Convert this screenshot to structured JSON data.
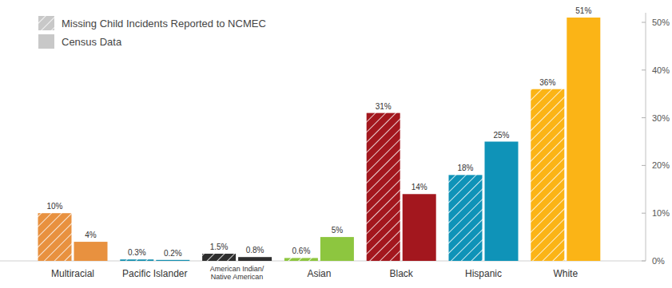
{
  "chart_data": {
    "type": "bar",
    "categories": [
      "Multiracial",
      "Pacific Islander",
      "American Indian/ Native American",
      "Asian",
      "Black",
      "Hispanic",
      "White"
    ],
    "series": [
      {
        "name": "Missing Child Incidents Reported to NCMEC",
        "color": "#c8c8c8",
        "line_style": "hatched",
        "colors": [
          "#e8913f",
          "#1590b0",
          "#2e2e2e",
          "#8dc63f",
          "#a3171e",
          "#0f93b8",
          "#fbb416"
        ],
        "values": [
          10,
          0.3,
          1.5,
          0.6,
          31,
          18,
          36
        ],
        "value_labels": [
          "10%",
          "0.3%",
          "1.5%",
          "0.6%",
          "31%",
          "18%",
          "36%"
        ]
      },
      {
        "name": "Census Data",
        "color": "#c8c8c8",
        "line_style": "solid",
        "colors": [
          "#e8913f",
          "#1590b0",
          "#2e2e2e",
          "#8dc63f",
          "#a3171e",
          "#0f93b8",
          "#fbb416"
        ],
        "values": [
          4,
          0.2,
          0.8,
          5,
          14,
          25,
          51
        ],
        "value_labels": [
          "4%",
          "0.2%",
          "0.8%",
          "5%",
          "14%",
          "25%",
          "51%"
        ]
      }
    ],
    "ylim": [
      0,
      52
    ],
    "yticks": [
      {
        "value": 0,
        "label": "0%"
      },
      {
        "value": 10,
        "label": "10%"
      },
      {
        "value": 20,
        "label": "20%"
      },
      {
        "value": 30,
        "label": "30%"
      },
      {
        "value": 40,
        "label": "40%"
      },
      {
        "value": 50,
        "label": "50%"
      }
    ],
    "data_labels": true,
    "legend": "upper left"
  }
}
